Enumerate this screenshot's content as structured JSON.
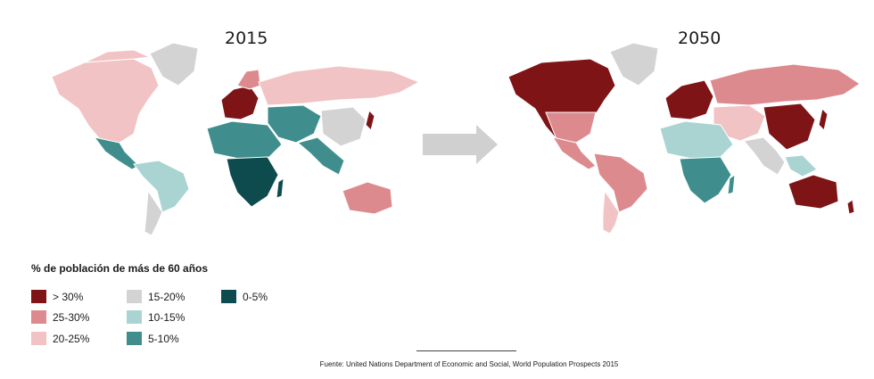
{
  "maps": [
    {
      "year": "2015"
    },
    {
      "year": "2050"
    }
  ],
  "legend": {
    "title": "% de población de más de 60 años",
    "items": [
      {
        "label": "> 30%",
        "color": "#7f1416"
      },
      {
        "label": "25-30%",
        "color": "#dd8a8e"
      },
      {
        "label": "20-25%",
        "color": "#f1c3c4"
      },
      {
        "label": "15-20%",
        "color": "#d3d3d3"
      },
      {
        "label": "10-15%",
        "color": "#a9d4d2"
      },
      {
        "label": "5-10%",
        "color": "#3f8e8d"
      },
      {
        "label": "0-5%",
        "color": "#0d4b4e"
      }
    ]
  },
  "source": "Fuente: United Nations Department of Economic and Social, World Population Prospects 2015",
  "arrow_color": "#d0d0d0"
}
